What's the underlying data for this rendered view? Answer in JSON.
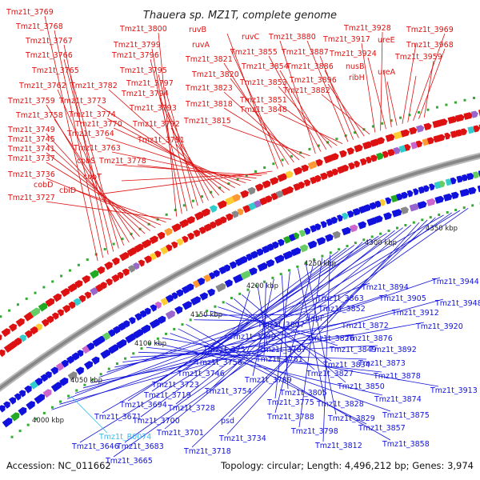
{
  "title": "Thauera sp. MZ1T, complete genome",
  "footer": {
    "accession": "Accession: NC_011662",
    "summary": "Topology: circular; Length: 4,496,212 bp; Genes: 3,974"
  },
  "colors": {
    "forward": "#dd1111",
    "reverse": "#1111dd",
    "rna": "#33bbee",
    "backbone": "#888888"
  },
  "ticks": [
    "4000 kbp",
    "4050 kbp",
    "4100 kbp",
    "4150 kbp",
    "4200 kbp",
    "4250 kbp",
    "4300 kbp",
    "4350 kbp"
  ],
  "forward_labels": [
    "Tmz1t_3769",
    "Tmz1t_3768",
    "Tmz1t_3767",
    "Tmz1t_3766",
    "Tmz1t_3765",
    "Tmz1t_3762",
    "Tmz1t_3759",
    "Tmz1t_3758",
    "Tmz1t_3749",
    "Tmz1t_3745",
    "Tmz1t_3741",
    "Tmz1t_3737",
    "Tmz1t_3736",
    "cobD",
    "Tmz1t_3727",
    "Tmz1t_3800",
    "Tmz1t_3799",
    "Tmz1t_3796",
    "Tmz1t_3795",
    "Tmz1t_3797",
    "Tmz1t_3794",
    "Tmz1t_3793",
    "Tmz1t_3792",
    "Tmz1t_3791",
    "Tmz1t_3782",
    "Tmz1t_3773",
    "Tmz1t_3774",
    "Tmz1t_3770",
    "Tmz1t_3764",
    "Tmz1t_3763",
    "Tmz1t_3778",
    "cobS",
    "cobT",
    "cbiD",
    "ruvB",
    "ruvA",
    "Tmz1t_3821",
    "Tmz1t_3820",
    "Tmz1t_3823",
    "Tmz1t_3818",
    "Tmz1t_3815",
    "ruvC",
    "Tmz1t_3855",
    "Tmz1t_3854",
    "Tmz1t_3853",
    "Tmz1t_3851",
    "Tmz1t_3848",
    "Tmz1t_3880",
    "Tmz1t_3887",
    "Tmz1t_3886",
    "Tmz1t_3896",
    "Tmz1t_3882",
    "Tmz1t_3917",
    "Tmz1t_3928",
    "Tmz1t_3924",
    "nusB",
    "ribH",
    "ureE",
    "ureA",
    "Tmz1t_3969",
    "Tmz1t_3968",
    "Tmz1t_3959"
  ],
  "reverse_labels": [
    "Tmz1t_3944",
    "Tmz1t_3948",
    "Tmz1t_3894",
    "Tmz1t_3905",
    "Tmz1t_3912",
    "Tmz1t_3920",
    "Tmz1t_3863",
    "Tmz1t_3852",
    "Tmz1t_3872",
    "Tmz1t_3876",
    "Tmz1t_3892",
    "Tmz1t_3873",
    "Tmz1t_3878",
    "Tmz1t_3874",
    "Tmz1t_3913",
    "Tmz1t_3875",
    "Tmz1t_3857",
    "Tmz1t_3858",
    "Tmz1t_3807",
    "dapF",
    "Tmz1t_3826",
    "Tmz1t_3849",
    "Tmz1t_3834",
    "Tmz1t_3827",
    "Tmz1t_3850",
    "Tmz1t_3790",
    "Tmz1t_3787",
    "Tmz1t_3781",
    "Tmz1t_3789",
    "Tmz1t_3805",
    "Tmz1t_3775",
    "Tmz1t_3828",
    "Tmz1t_3829",
    "Tmz1t_3788",
    "Tmz1t_3798",
    "Tmz1t_3812",
    "Tmz1t_3757",
    "Tmz1t_3756",
    "Tmz1t_3746",
    "Tmz1t_3754",
    "Tmz1t_3723",
    "Tmz1t_3719",
    "Tmz1t_3694",
    "Tmz1t_3728",
    "Tmz1t_3700",
    "Tmz1t_3701",
    "Tmz1t_3734",
    "psd",
    "Tmz1t_3718",
    "Tmz1t_3671",
    "Tmz1t_3683",
    "Tmz1t_3646",
    "Tmz1t_3665"
  ],
  "rna_labels": [
    "Tmz1t_R0074"
  ]
}
